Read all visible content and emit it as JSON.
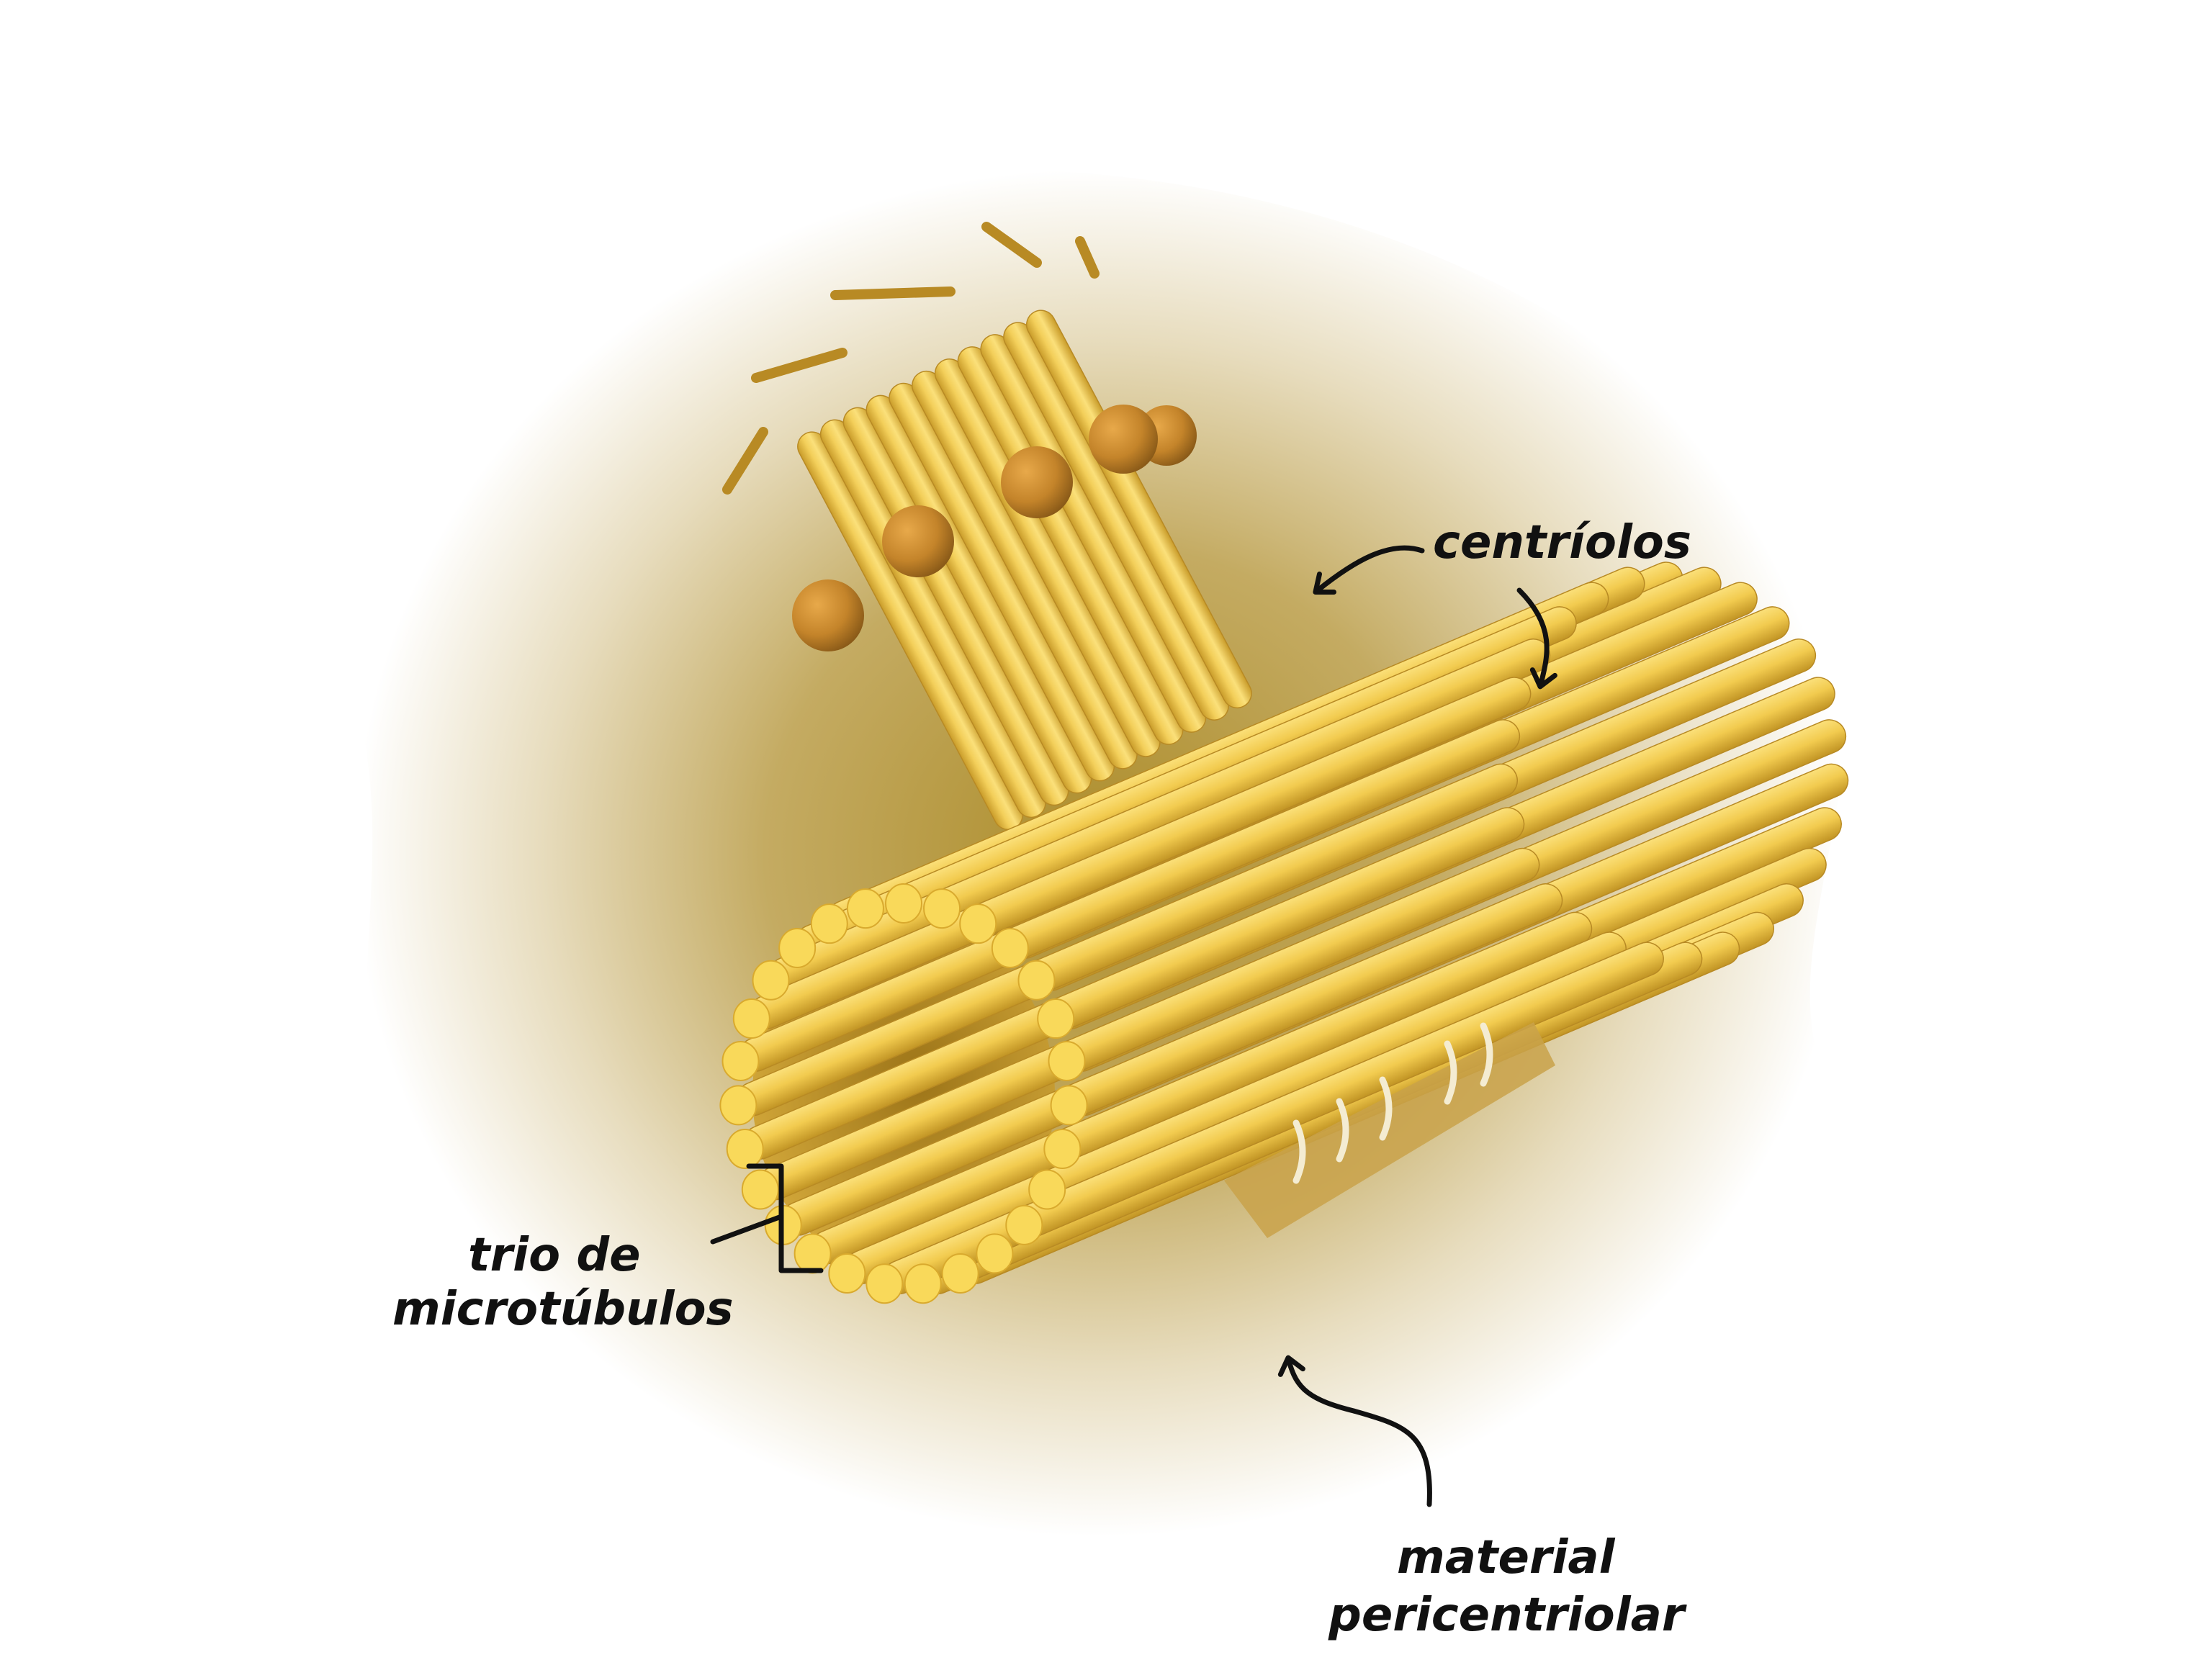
{
  "labels": {
    "centrioles": "centríolos",
    "triplet_line1": "trio de",
    "triplet_line2": "microtúbulos",
    "pcm_line1": "material",
    "pcm_line2": "pericentriolar"
  },
  "colors": {
    "tube_light": "#f7d564",
    "tube_mid": "#ebc03e",
    "tube_dark": "#b98d20",
    "tube_end": "#f9d95a",
    "sphere": "#c98a2c",
    "pcm_core": "#ad8d2b",
    "pcm_edge": "#ffffff",
    "ink": "#111111"
  }
}
